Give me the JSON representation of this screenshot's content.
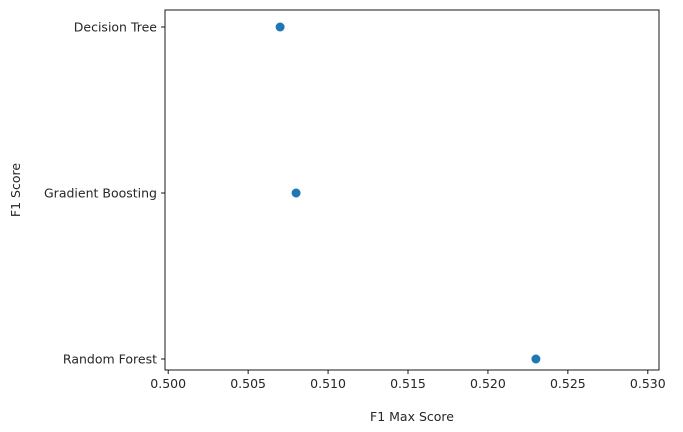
{
  "chart_data": {
    "type": "scatter",
    "title": "",
    "xlabel": "F1 Max Score",
    "ylabel": "F1 Score",
    "xlim": [
      0.4998,
      0.5307
    ],
    "x_ticks": [
      "0.500",
      "0.505",
      "0.510",
      "0.515",
      "0.520",
      "0.525",
      "0.530"
    ],
    "x_tick_values": [
      0.5,
      0.505,
      0.51,
      0.515,
      0.52,
      0.525,
      0.53
    ],
    "categories": [
      "Random Forest",
      "Gradient Boosting",
      "Decision Tree"
    ],
    "points": [
      {
        "label": "Decision Tree",
        "x": 0.507
      },
      {
        "label": "Gradient Boosting",
        "x": 0.508
      },
      {
        "label": "Random Forest",
        "x": 0.523
      }
    ],
    "grid": false,
    "marker_color": "#1f77b4"
  }
}
